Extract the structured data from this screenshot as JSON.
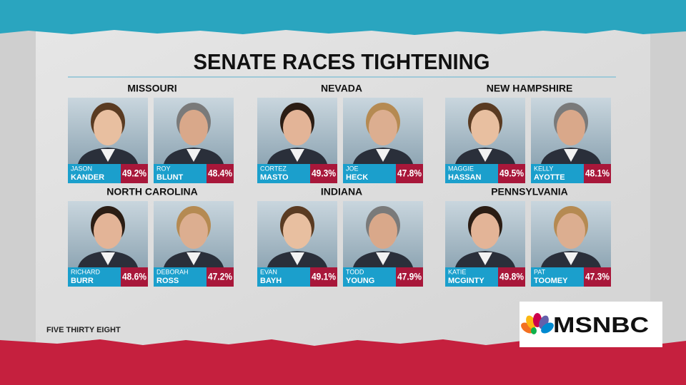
{
  "header": {
    "title": "SENATE RACES TIGHTENING"
  },
  "races": [
    {
      "state": "MISSOURI",
      "candidates": [
        {
          "first": "JASON",
          "last": "KANDER",
          "share": "49.2%"
        },
        {
          "first": "ROY",
          "last": "BLUNT",
          "share": "48.4%"
        }
      ]
    },
    {
      "state": "NEVADA",
      "candidates": [
        {
          "first": "CORTEZ",
          "last": "MASTO",
          "share": "49.3%"
        },
        {
          "first": "JOE",
          "last": "HECK",
          "share": "47.8%"
        }
      ]
    },
    {
      "state": "NEW HAMPSHIRE",
      "candidates": [
        {
          "first": "MAGGIE",
          "last": "HASSAN",
          "share": "49.5%"
        },
        {
          "first": "KELLY",
          "last": "AYOTTE",
          "share": "48.1%"
        }
      ]
    },
    {
      "state": "NORTH CAROLINA",
      "candidates": [
        {
          "first": "RICHARD",
          "last": "BURR",
          "share": "48.6%"
        },
        {
          "first": "DEBORAH",
          "last": "ROSS",
          "share": "47.2%"
        }
      ]
    },
    {
      "state": "INDIANA",
      "candidates": [
        {
          "first": "EVAN",
          "last": "BAYH",
          "share": "49.1%"
        },
        {
          "first": "TODD",
          "last": "YOUNG",
          "share": "47.9%"
        }
      ]
    },
    {
      "state": "PENNSYLVANIA",
      "candidates": [
        {
          "first": "KATIE",
          "last": "MCGINTY",
          "share": "49.8%"
        },
        {
          "first": "PAT",
          "last": "TOOMEY",
          "share": "47.3%"
        }
      ]
    }
  ],
  "source": "FIVE THIRTY EIGHT",
  "logo": "MSNBC"
}
